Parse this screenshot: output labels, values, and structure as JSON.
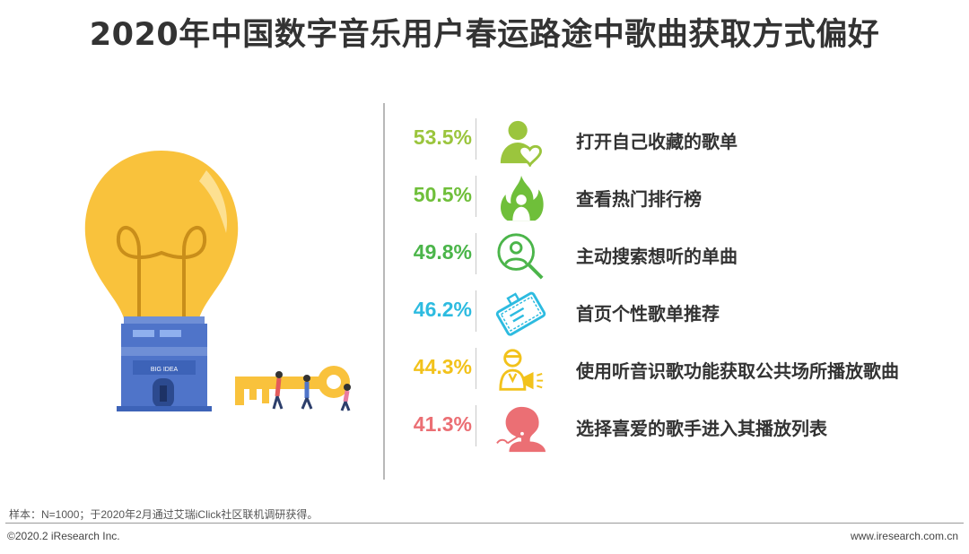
{
  "title": "2020年中国数字音乐用户春运路途中歌曲获取方式偏好",
  "illustration": {
    "bulb_base_text": "BIG IDEA"
  },
  "chart_data": {
    "type": "bar",
    "categories": [
      "打开自己收藏的歌单",
      "查看热门排行榜",
      "主动搜索想听的单曲",
      "首页个性歌单推荐",
      "使用听音识歌功能获取公共场所播放歌曲",
      "选择喜爱的歌手进入其播放列表"
    ],
    "values": [
      53.5,
      50.5,
      49.8,
      46.2,
      44.3,
      41.3
    ],
    "display_values": [
      "53.5%",
      "50.5%",
      "49.8%",
      "46.2%",
      "44.3%",
      "41.3%"
    ],
    "colors": [
      "#9bc53d",
      "#6fbf3a",
      "#4bb54a",
      "#2dbbe0",
      "#f2c21b",
      "#eb6f74"
    ],
    "icons": [
      "user-heart-icon",
      "flame-icon",
      "search-person-icon",
      "playlist-card-icon",
      "speaker-person-icon",
      "singer-icon"
    ]
  },
  "footnote": "样本：N=1000；于2020年2月通过艾瑞iClick社区联机调研获得。",
  "copyright": "©2020.2 iResearch Inc.",
  "site": "www.iresearch.com.cn"
}
